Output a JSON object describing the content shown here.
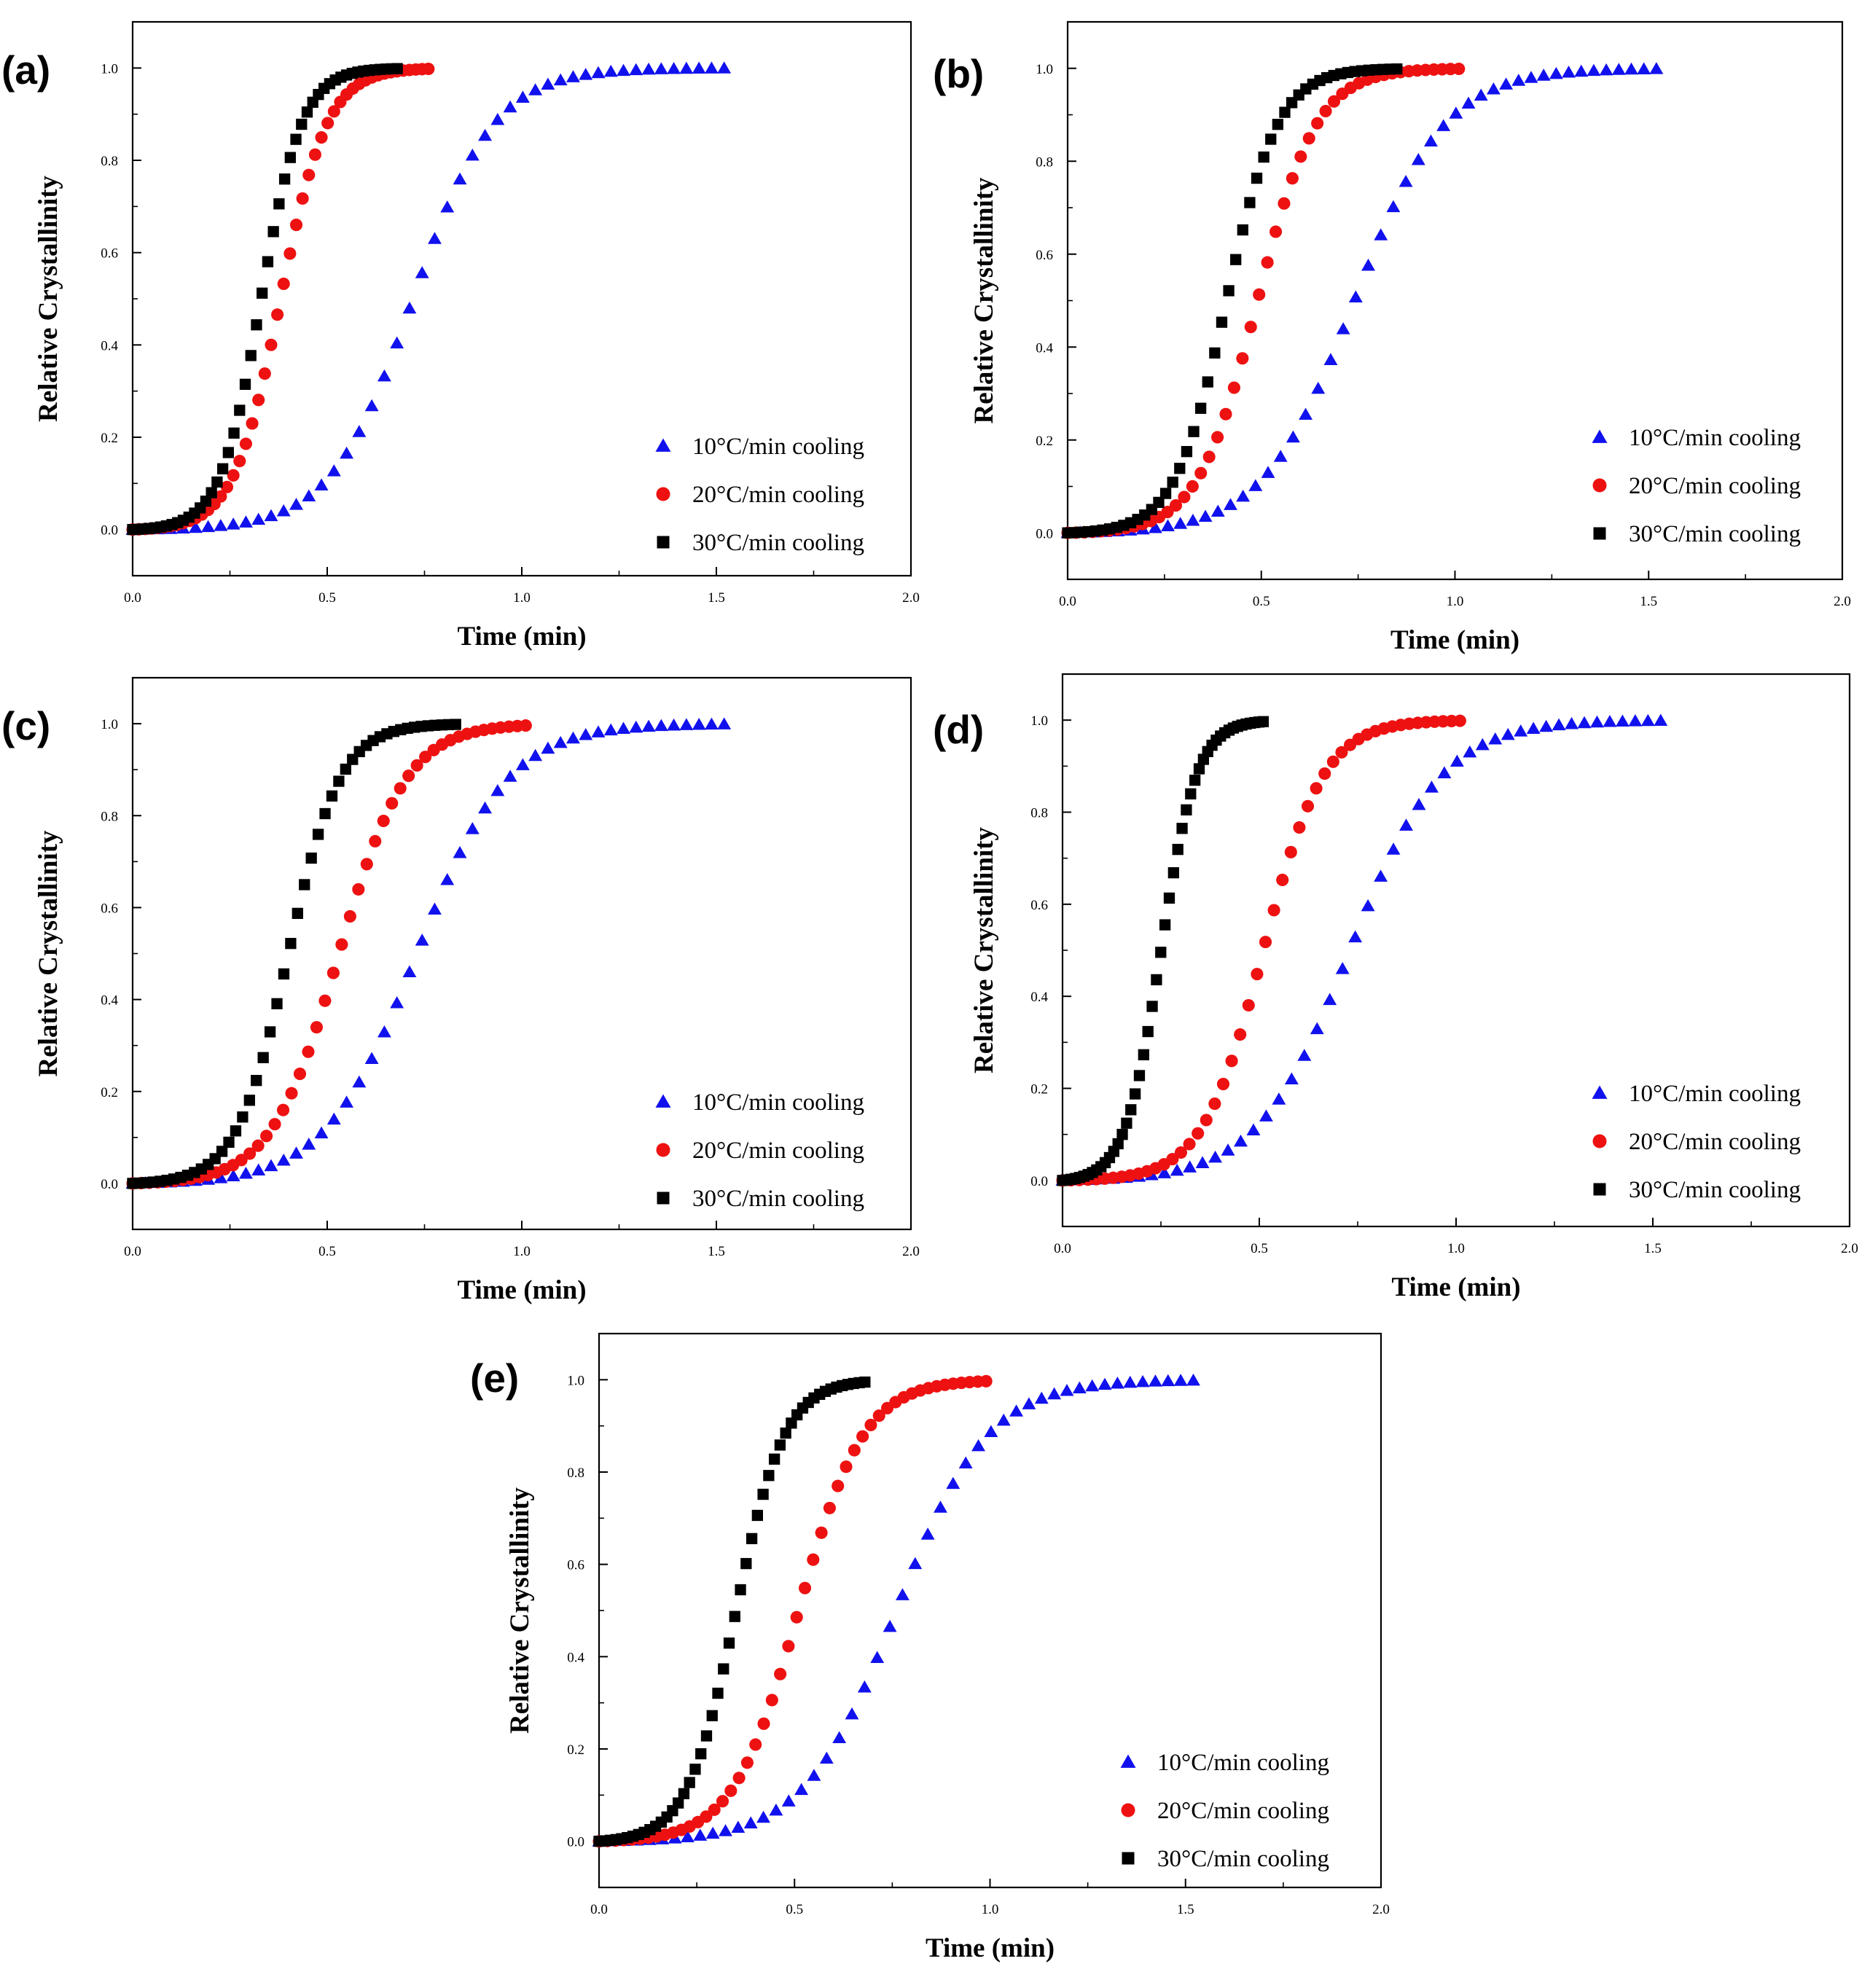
{
  "figure": {
    "colors": {
      "series_10": "#1111ee",
      "series_20": "#ee1111",
      "series_30": "#000000",
      "axes": "#000000"
    }
  },
  "chart_data": [
    {
      "panel_label": "(a)",
      "type": "scatter",
      "xlabel": "Time (min)",
      "ylabel": "Relative Crystallinity",
      "xlim": [
        0,
        2.0
      ],
      "ylim": [
        -0.1,
        1.1
      ],
      "xticks": [
        "0.0",
        "0.5",
        "1.0",
        "1.5",
        "2.0"
      ],
      "yticks": [
        "0.0",
        "0.2",
        "0.4",
        "0.6",
        "0.8",
        "1.0"
      ],
      "legend_position": "lower-right",
      "grid": false,
      "series": [
        {
          "name": "10°C/min cooling",
          "marker": "triangle",
          "color": "#1111ee",
          "t_end": 1.52,
          "t_half": 0.72,
          "k": 9.5,
          "n_points": 48
        },
        {
          "name": "20°C/min cooling",
          "marker": "circle",
          "color": "#ee1111",
          "t_end": 0.76,
          "t_half": 0.38,
          "k": 16.5,
          "n_points": 48
        },
        {
          "name": "30°C/min cooling",
          "marker": "square",
          "color": "#000000",
          "t_end": 0.68,
          "t_half": 0.33,
          "k": 19.0,
          "n_points": 48
        }
      ]
    },
    {
      "panel_label": "(b)",
      "type": "scatter",
      "xlabel": "Time (min)",
      "ylabel": "Relative Crystallinity",
      "xlim": [
        0,
        2.0
      ],
      "ylim": [
        -0.1,
        1.1
      ],
      "xticks": [
        "0.0",
        "0.5",
        "1.0",
        "1.5",
        "2.0"
      ],
      "yticks": [
        "0.0",
        "0.2",
        "0.4",
        "0.6",
        "0.8",
        "1.0"
      ],
      "legend_position": "lower-right",
      "grid": false,
      "series": [
        {
          "name": "10°C/min cooling",
          "marker": "triangle",
          "color": "#1111ee",
          "t_end": 1.52,
          "t_half": 0.74,
          "k": 8.5,
          "n_points": 48
        },
        {
          "name": "20°C/min cooling",
          "marker": "circle",
          "color": "#ee1111",
          "t_end": 1.01,
          "t_half": 0.49,
          "k": 13.0,
          "n_points": 48
        },
        {
          "name": "30°C/min cooling",
          "marker": "square",
          "color": "#000000",
          "t_end": 0.85,
          "t_half": 0.41,
          "k": 15.0,
          "n_points": 48
        }
      ]
    },
    {
      "panel_label": "(c)",
      "type": "scatter",
      "xlabel": "Time (min)",
      "ylabel": "Relative Crystallinity",
      "xlim": [
        0,
        2.0
      ],
      "ylim": [
        -0.1,
        1.1
      ],
      "xticks": [
        "0.0",
        "0.5",
        "1.0",
        "1.5",
        "2.0"
      ],
      "yticks": [
        "0.0",
        "0.2",
        "0.4",
        "0.6",
        "0.8",
        "1.0"
      ],
      "legend_position": "lower-right",
      "grid": false,
      "series": [
        {
          "name": "10°C/min cooling",
          "marker": "triangle",
          "color": "#1111ee",
          "t_end": 1.52,
          "t_half": 0.73,
          "k": 8.5,
          "n_points": 48
        },
        {
          "name": "20°C/min cooling",
          "marker": "circle",
          "color": "#ee1111",
          "t_end": 1.01,
          "t_half": 0.53,
          "k": 11.5,
          "n_points": 48
        },
        {
          "name": "30°C/min cooling",
          "marker": "square",
          "color": "#000000",
          "t_end": 0.83,
          "t_half": 0.4,
          "k": 15.0,
          "n_points": 48
        }
      ]
    },
    {
      "panel_label": "(d)",
      "type": "scatter",
      "xlabel": "Time (min)",
      "ylabel": "Relative Crystallinity",
      "xlim": [
        0,
        2.0
      ],
      "ylim": [
        -0.1,
        1.1
      ],
      "xticks": [
        "0.0",
        "0.5",
        "1.0",
        "1.5",
        "2.0"
      ],
      "yticks": [
        "0.0",
        "0.2",
        "0.4",
        "0.6",
        "0.8",
        "1.0"
      ],
      "legend_position": "lower-right",
      "grid": false,
      "series": [
        {
          "name": "10°C/min cooling",
          "marker": "triangle",
          "color": "#1111ee",
          "t_end": 1.52,
          "t_half": 0.73,
          "k": 8.5,
          "n_points": 48
        },
        {
          "name": "20°C/min cooling",
          "marker": "circle",
          "color": "#ee1111",
          "t_end": 1.01,
          "t_half": 0.51,
          "k": 13.0,
          "n_points": 48
        },
        {
          "name": "30°C/min cooling",
          "marker": "square",
          "color": "#000000",
          "t_end": 0.51,
          "t_half": 0.25,
          "k": 22.0,
          "n_points": 48
        }
      ]
    },
    {
      "panel_label": "(e)",
      "type": "scatter",
      "xlabel": "Time (min)",
      "ylabel": "Relative Crystallinity",
      "xlim": [
        0,
        2.0
      ],
      "ylim": [
        -0.1,
        1.1
      ],
      "xticks": [
        "0.0",
        "0.5",
        "1.0",
        "1.5",
        "2.0"
      ],
      "yticks": [
        "0.0",
        "0.2",
        "0.4",
        "0.6",
        "0.8",
        "1.0"
      ],
      "legend_position": "lower-right",
      "grid": false,
      "series": [
        {
          "name": "10°C/min cooling",
          "marker": "triangle",
          "color": "#1111ee",
          "t_end": 1.52,
          "t_half": 0.76,
          "k": 8.5,
          "n_points": 48
        },
        {
          "name": "20°C/min cooling",
          "marker": "circle",
          "color": "#ee1111",
          "t_end": 0.99,
          "t_half": 0.51,
          "k": 12.0,
          "n_points": 48
        },
        {
          "name": "30°C/min cooling",
          "marker": "square",
          "color": "#000000",
          "t_end": 0.68,
          "t_half": 0.35,
          "k": 16.0,
          "n_points": 48
        }
      ]
    }
  ]
}
